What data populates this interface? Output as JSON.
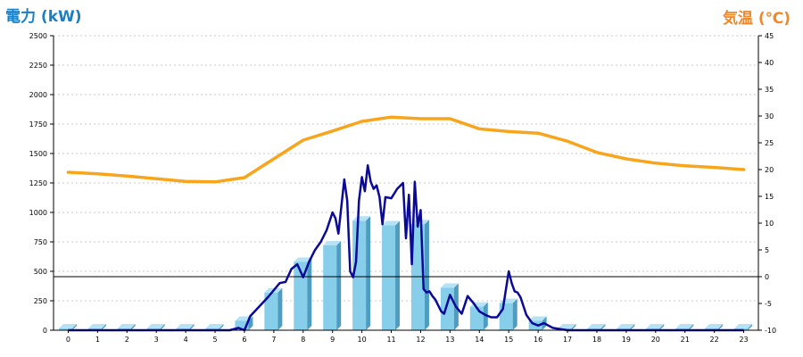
{
  "header": {
    "left_title": "電力 (kW)",
    "right_title": "気温 (℃)"
  },
  "colors": {
    "bar_front": "#87ceeb",
    "bar_side": "#4d9dc2",
    "bar_top": "#b5e3f5",
    "power_line": "#0a0a96",
    "temp_line": "#f7a51c",
    "grid": "#c8c8c8",
    "axis": "#000000"
  },
  "chart_data": {
    "type": "bar",
    "categories": [
      "0",
      "1",
      "2",
      "3",
      "4",
      "5",
      "6",
      "7",
      "8",
      "9",
      "10",
      "11",
      "12",
      "13",
      "14",
      "15",
      "16",
      "17",
      "18",
      "19",
      "20",
      "21",
      "22",
      "23"
    ],
    "y_left": {
      "range": [
        0,
        2500
      ],
      "ticks": [
        "0",
        "250",
        "500",
        "750",
        "1000",
        "1250",
        "1500",
        "1750",
        "2000",
        "2250",
        "2500"
      ]
    },
    "y_right": {
      "range": [
        -10,
        45
      ],
      "ticks": [
        "-10",
        "-5",
        "0",
        "5",
        "10",
        "15",
        "20",
        "25",
        "30",
        "35",
        "40",
        "45"
      ]
    },
    "grid": true,
    "series": [
      {
        "type": "bar",
        "axis": "left",
        "values": [
          15,
          15,
          15,
          15,
          15,
          15,
          80,
          320,
          580,
          720,
          930,
          890,
          900,
          360,
          200,
          230,
          80,
          15,
          15,
          15,
          15,
          15,
          15,
          15
        ]
      },
      {
        "type": "line",
        "axis": "left",
        "x": [
          0,
          1,
          2,
          3,
          4,
          5,
          5.5,
          5.8,
          6,
          6.2,
          6.5,
          6.8,
          7,
          7.2,
          7.4,
          7.6,
          7.8,
          8,
          8.2,
          8.4,
          8.6,
          8.8,
          9,
          9.1,
          9.2,
          9.4,
          9.5,
          9.6,
          9.7,
          9.8,
          9.9,
          10,
          10.1,
          10.2,
          10.3,
          10.4,
          10.5,
          10.6,
          10.7,
          10.8,
          11,
          11.2,
          11.4,
          11.5,
          11.6,
          11.7,
          11.8,
          11.9,
          12,
          12.1,
          12.2,
          12.3,
          12.4,
          12.5,
          12.6,
          12.7,
          12.8,
          13,
          13.2,
          13.4,
          13.6,
          13.8,
          14,
          14.2,
          14.4,
          14.6,
          14.8,
          15,
          15.1,
          15.2,
          15.3,
          15.4,
          15.6,
          15.8,
          16,
          16.2,
          16.5,
          17,
          18,
          19,
          20,
          21,
          22,
          23
        ],
        "values": [
          0,
          0,
          0,
          0,
          0,
          0,
          0,
          20,
          0,
          120,
          200,
          280,
          340,
          400,
          410,
          520,
          560,
          450,
          580,
          680,
          750,
          850,
          1000,
          950,
          820,
          1280,
          1100,
          500,
          450,
          580,
          1100,
          1300,
          1180,
          1400,
          1260,
          1200,
          1230,
          1130,
          900,
          1130,
          1120,
          1200,
          1250,
          780,
          1150,
          560,
          1260,
          880,
          1020,
          350,
          320,
          330,
          290,
          260,
          210,
          160,
          140,
          300,
          200,
          140,
          290,
          230,
          160,
          130,
          110,
          110,
          180,
          500,
          400,
          330,
          320,
          280,
          130,
          60,
          40,
          60,
          20,
          0,
          0,
          0,
          0,
          0,
          0,
          0
        ]
      },
      {
        "type": "line",
        "axis": "right",
        "x": [
          0,
          1,
          2,
          3,
          4,
          5,
          6,
          7,
          8,
          9,
          10,
          11,
          12,
          13,
          14,
          15,
          16,
          17,
          18,
          19,
          20,
          21,
          22,
          23
        ],
        "values": [
          19.5,
          19.2,
          18.8,
          18.3,
          17.8,
          17.7,
          18.5,
          22.0,
          25.5,
          27.2,
          29.0,
          29.8,
          29.5,
          29.5,
          27.6,
          27.1,
          26.8,
          25.3,
          23.2,
          22.0,
          21.2,
          20.7,
          20.4,
          20.0
        ]
      }
    ]
  }
}
